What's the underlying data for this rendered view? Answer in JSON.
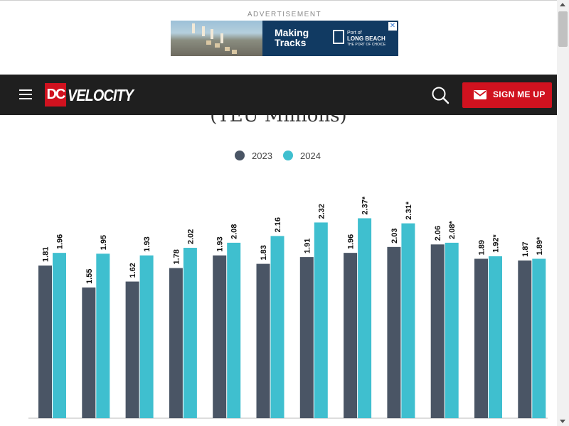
{
  "ad": {
    "label": "ADVERTISEMENT",
    "headline_line1": "Making",
    "headline_line2": "Tracks",
    "sponsor_line1": "Port of",
    "sponsor_line2": "LONG BEACH",
    "sponsor_line3": "THE PORT OF CHOICE",
    "close_glyph": "✕"
  },
  "header": {
    "logo_mark": "DC",
    "logo_word": "VELOCITY",
    "signup_label": "SIGN ME UP"
  },
  "colors": {
    "header_bg": "#1f1f1f",
    "brand_red": "#d0121f",
    "series_2023": "#4a5565",
    "series_2024": "#3fbfcf"
  },
  "icons": {
    "menu": "hamburger-menu-icon",
    "search": "search-icon",
    "signup": "envelope-icon",
    "ad_close": "close-icon"
  },
  "chart_data": {
    "type": "bar",
    "subtitle": "(TEU Millions)",
    "legend_position": "top-center",
    "grid": false,
    "series": [
      {
        "name": "2023",
        "color": "#4a5565",
        "values": [
          1.81,
          1.55,
          1.62,
          1.78,
          1.93,
          1.83,
          1.91,
          1.96,
          2.03,
          2.06,
          1.89,
          1.87
        ],
        "labels": [
          "1.81",
          "1.55",
          "1.62",
          "1.78",
          "1.93",
          "1.83",
          "1.91",
          "1.96",
          "2.03",
          "2.06",
          "1.89",
          "1.87"
        ]
      },
      {
        "name": "2024",
        "color": "#3fbfcf",
        "values": [
          1.96,
          1.95,
          1.93,
          2.02,
          2.08,
          2.16,
          2.32,
          2.37,
          2.31,
          2.08,
          1.92,
          1.89
        ],
        "labels": [
          "1.96",
          "1.95",
          "1.93",
          "2.02",
          "2.08",
          "2.16",
          "2.32",
          "2.37*",
          "2.31*",
          "2.08*",
          "1.92*",
          "1.89*"
        ]
      }
    ]
  }
}
